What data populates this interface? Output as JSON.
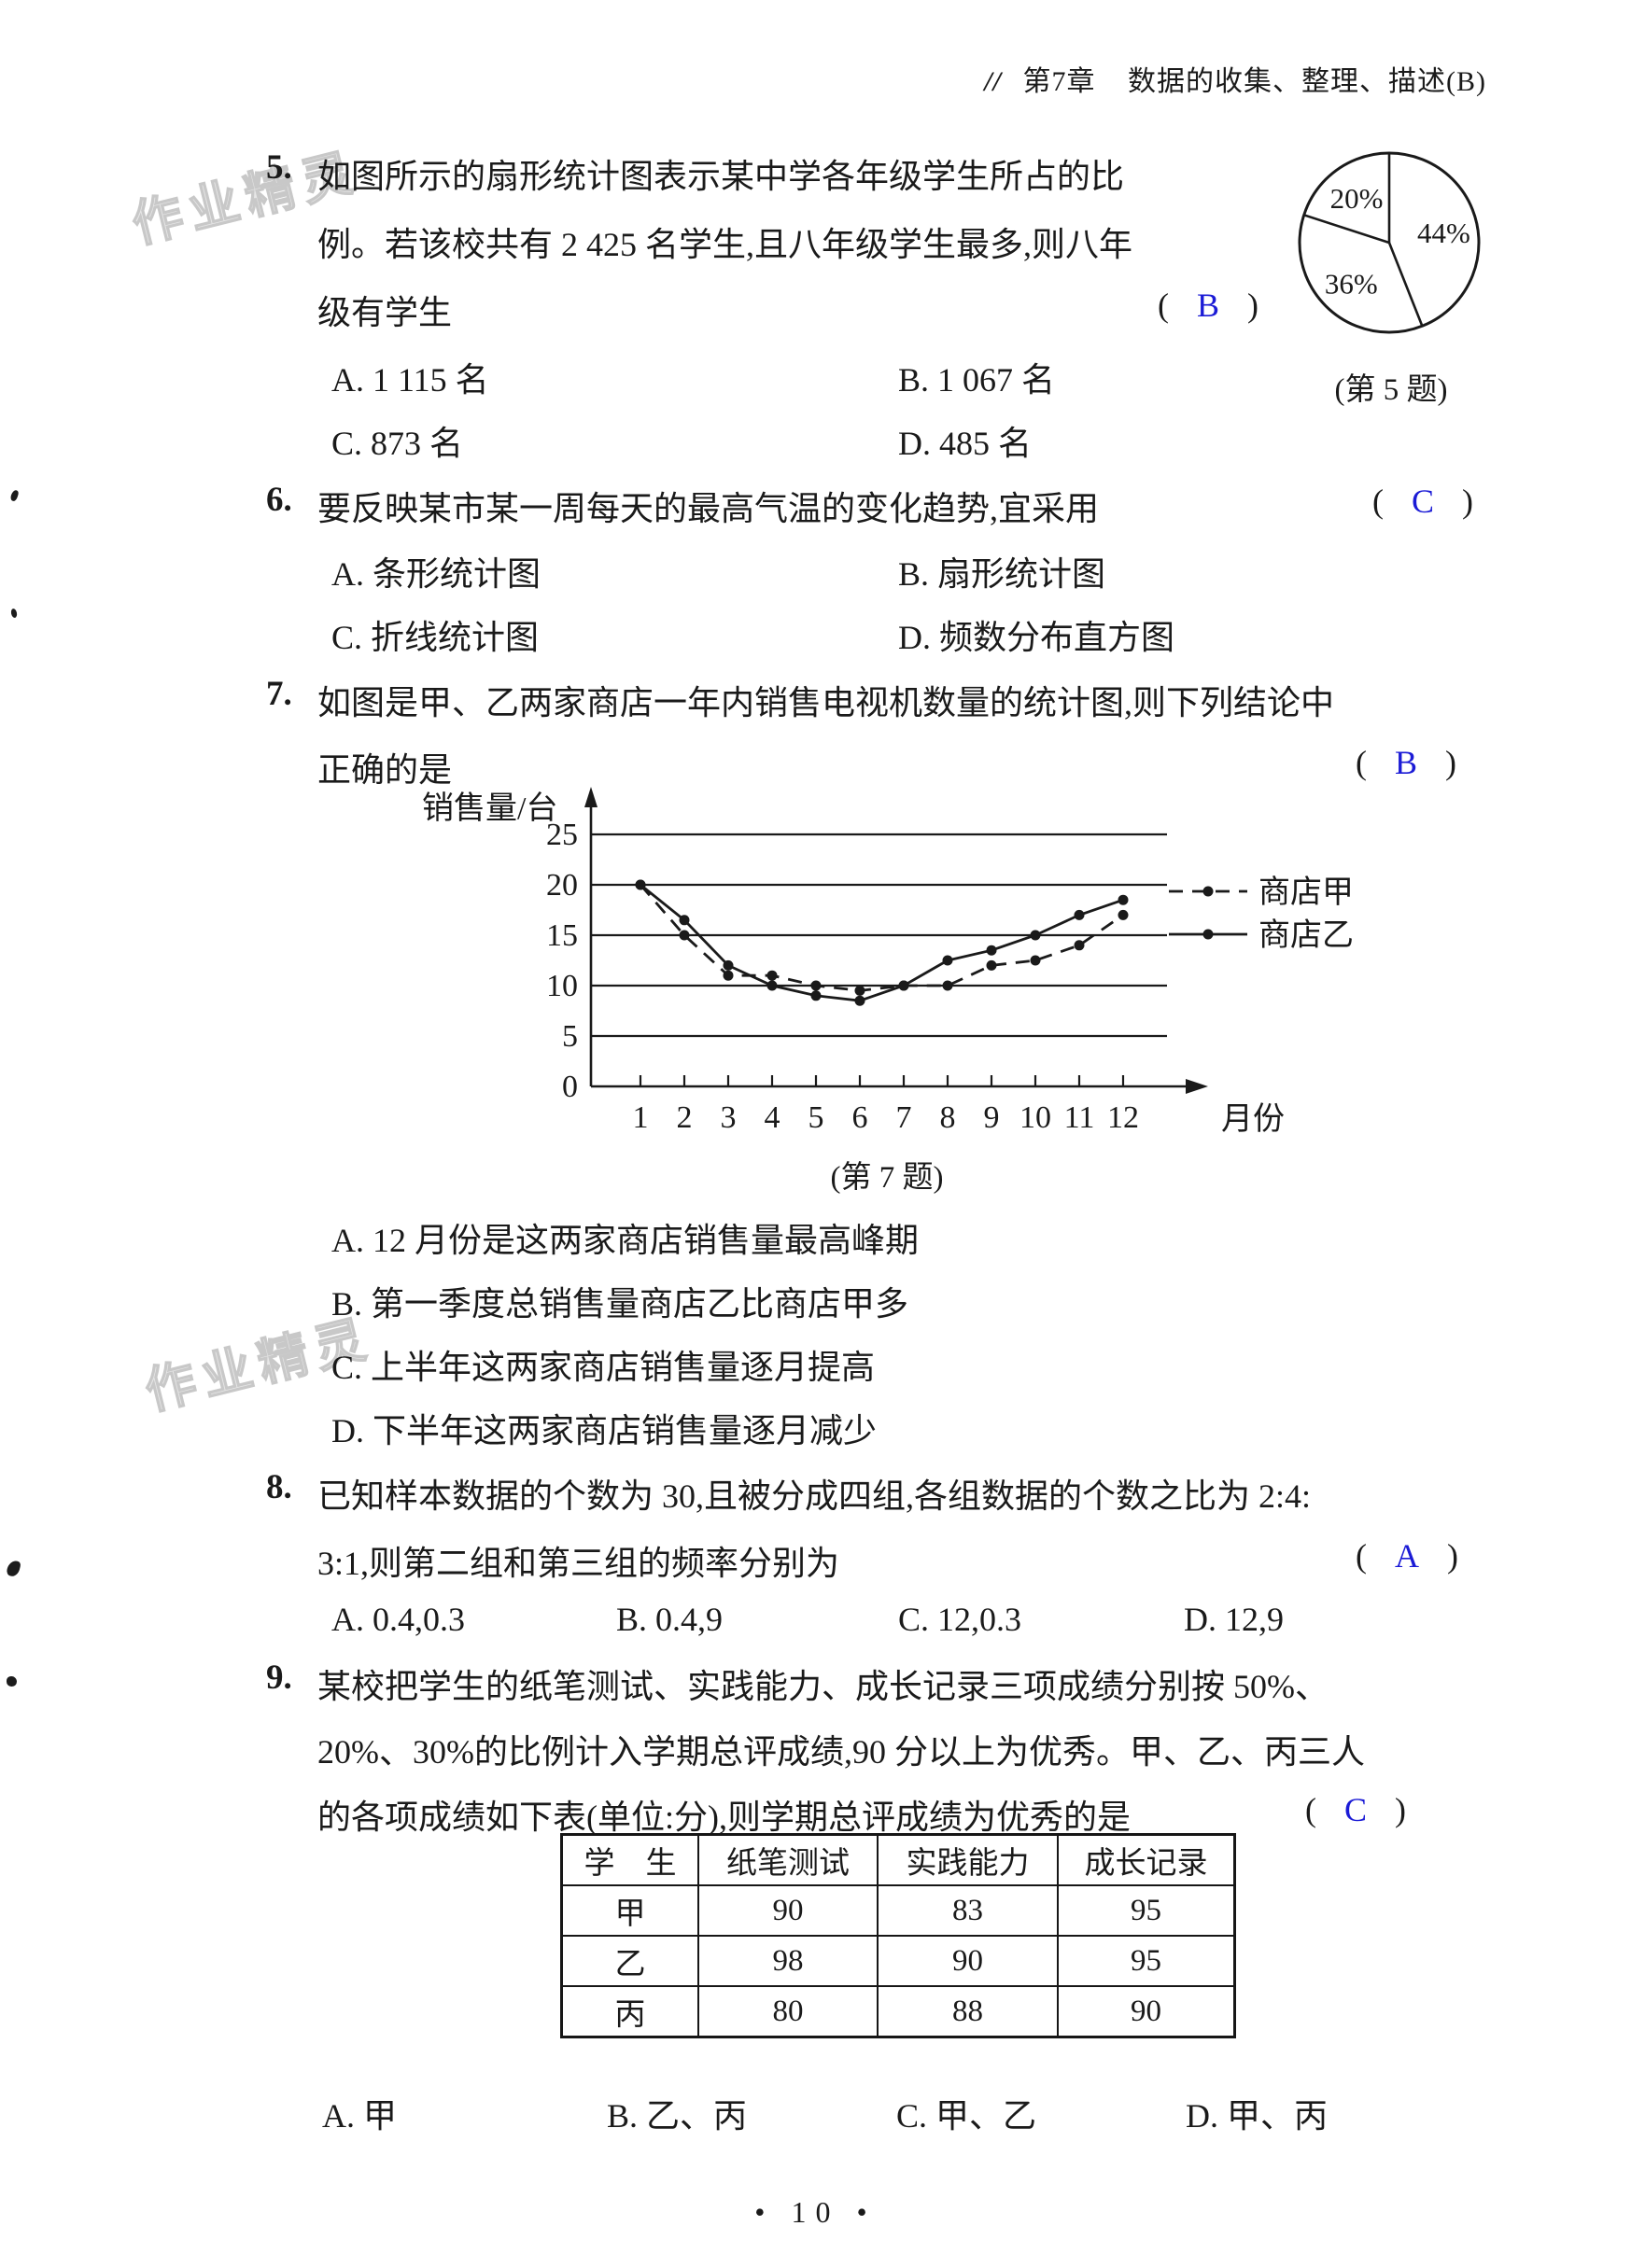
{
  "page": {
    "header": {
      "slashes": "//",
      "chapter": "第7章",
      "title": "数据的收集、整理、描述(B)"
    },
    "watermark": "作业精灵",
    "footer": "• 10 •"
  },
  "ui": {
    "paren_open": "(",
    "paren_close": ")"
  },
  "colors": {
    "answer_blue": "#1b1bd6",
    "ink": "#1a1a1a",
    "watermark_gray": "#bfbfbf"
  },
  "questions": [
    {
      "number": "5.",
      "lines": [
        "如图所示的扇形统计图表示某中学各年级学生所占的比",
        "例。若该校共有 2 425 名学生,且八年级学生最多,则八年",
        "级有学生"
      ],
      "answer": "B",
      "options": [
        "A. 1 115 名",
        "B. 1 067 名",
        "C. 873 名",
        "D. 485 名"
      ]
    },
    {
      "number": "6.",
      "lines": [
        "要反映某市某一周每天的最高气温的变化趋势,宜采用"
      ],
      "answer": "C",
      "options": [
        "A. 条形统计图",
        "B. 扇形统计图",
        "C. 折线统计图",
        "D. 频数分布直方图"
      ]
    },
    {
      "number": "7.",
      "lines": [
        "如图是甲、乙两家商店一年内销售电视机数量的统计图,则下列结论中",
        "正确的是"
      ],
      "answer": "B",
      "options": [
        "A. 12 月份是这两家商店销售量最高峰期",
        "B. 第一季度总销售量商店乙比商店甲多",
        "C. 上半年这两家商店销售量逐月提高",
        "D. 下半年这两家商店销售量逐月减少"
      ]
    },
    {
      "number": "8.",
      "lines": [
        "已知样本数据的个数为 30,且被分成四组,各组数据的个数之比为 2:4:",
        "3:1,则第二组和第三组的频率分别为"
      ],
      "answer": "A",
      "options": [
        "A. 0.4,0.3",
        "B. 0.4,9",
        "C. 12,0.3",
        "D. 12,9"
      ]
    },
    {
      "number": "9.",
      "lines": [
        "某校把学生的纸笔测试、实践能力、成长记录三项成绩分别按 50%、",
        "20%、30%的比例计入学期总评成绩,90 分以上为优秀。甲、乙、丙三人",
        "的各项成绩如下表(单位:分),则学期总评成绩为优秀的是"
      ],
      "answer": "C",
      "options": [
        "A. 甲",
        "B. 乙、丙",
        "C. 甲、乙",
        "D. 甲、丙"
      ]
    }
  ],
  "chart_data": [
    {
      "type": "pie",
      "caption": "(第 5 题)",
      "start_angle_deg": 0,
      "direction": "clockwise",
      "slices": [
        {
          "label": "44%",
          "value": 44
        },
        {
          "label": "36%",
          "value": 36
        },
        {
          "label": "20%",
          "value": 20
        }
      ]
    },
    {
      "type": "line",
      "caption": "(第 7 题)",
      "ylabel": "销售量/台",
      "xlabel": "月份",
      "x": [
        1,
        2,
        3,
        4,
        5,
        6,
        7,
        8,
        9,
        10,
        11,
        12
      ],
      "ylim": [
        0,
        25
      ],
      "yticks": [
        0,
        5,
        10,
        15,
        20,
        25
      ],
      "grid": "horizontal",
      "legend_position": "right",
      "series": [
        {
          "name": "商店甲",
          "line_style": "dashed",
          "marker": "dot",
          "values": [
            20,
            15,
            11,
            11,
            10,
            9.5,
            10,
            10,
            12,
            12.5,
            14,
            17
          ]
        },
        {
          "name": "商店乙",
          "line_style": "solid",
          "marker": "dot",
          "values": [
            20,
            16.5,
            12,
            10,
            9,
            8.5,
            10,
            12.5,
            13.5,
            15,
            17,
            18.5
          ]
        }
      ]
    }
  ],
  "table": {
    "headers": [
      "学　生",
      "纸笔测试",
      "实践能力",
      "成长记录"
    ],
    "rows": [
      [
        "甲",
        "90",
        "83",
        "95"
      ],
      [
        "乙",
        "98",
        "90",
        "95"
      ],
      [
        "丙",
        "80",
        "88",
        "90"
      ]
    ]
  }
}
